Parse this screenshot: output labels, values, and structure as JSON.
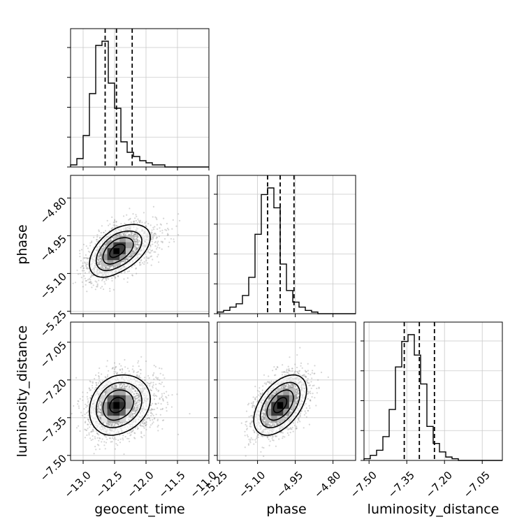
{
  "chart_data": {
    "type": "corner",
    "parameters": [
      {
        "name": "geocent_time",
        "ticks": [
          -13.0,
          -12.5,
          -12.0,
          -11.5,
          -11.0
        ],
        "tick_labels": [
          "−13.0",
          "−12.5",
          "−12.0",
          "−11.5",
          "−11.0"
        ],
        "range": [
          -13.2,
          -11.0
        ]
      },
      {
        "name": "phase",
        "ticks": [
          -5.25,
          -5.1,
          -4.95,
          -4.8
        ],
        "tick_labels": [
          "−5.25",
          "−5.10",
          "−4.95",
          "−4.80"
        ],
        "range": [
          -5.26,
          -4.71
        ]
      },
      {
        "name": "luminosity_distance",
        "ticks": [
          -7.5,
          -7.35,
          -7.2,
          -7.05
        ],
        "tick_labels": [
          "−7.50",
          "−7.35",
          "−7.20",
          "−7.05"
        ],
        "range": [
          -7.52,
          -6.97
        ]
      }
    ],
    "quantiles": [
      [
        -12.65,
        -12.47,
        -12.22
      ],
      [
        -5.06,
        -5.01,
        -4.955
      ],
      [
        -7.36,
        -7.3,
        -7.24
      ]
    ],
    "histograms": [
      {
        "bin_start": -13.2,
        "bin_width": 0.1,
        "counts": [
          1,
          4,
          15,
          35,
          58,
          60,
          40,
          28,
          12,
          7,
          5,
          3,
          2,
          1,
          1,
          0,
          0,
          0,
          0,
          0,
          0,
          0
        ]
      },
      {
        "bin_start": -5.26,
        "bin_width": 0.025,
        "counts": [
          1,
          2,
          4,
          6,
          11,
          22,
          48,
          72,
          76,
          64,
          30,
          14,
          7,
          4,
          2,
          1,
          0,
          0,
          0,
          0,
          0,
          0
        ]
      },
      {
        "bin_start": -7.52,
        "bin_width": 0.025,
        "counts": [
          1,
          3,
          6,
          14,
          30,
          55,
          70,
          74,
          62,
          45,
          20,
          10,
          5,
          2,
          1,
          0,
          0,
          0,
          0,
          0,
          0,
          0
        ]
      }
    ],
    "correlations": [
      [
        1,
        0.5,
        0.2
      ],
      [
        0.5,
        1,
        0.5
      ],
      [
        0.2,
        0.5,
        1
      ]
    ],
    "contour_levels_sigma": [
      0.5,
      1.0,
      1.5,
      2.0
    ],
    "grid": true
  }
}
